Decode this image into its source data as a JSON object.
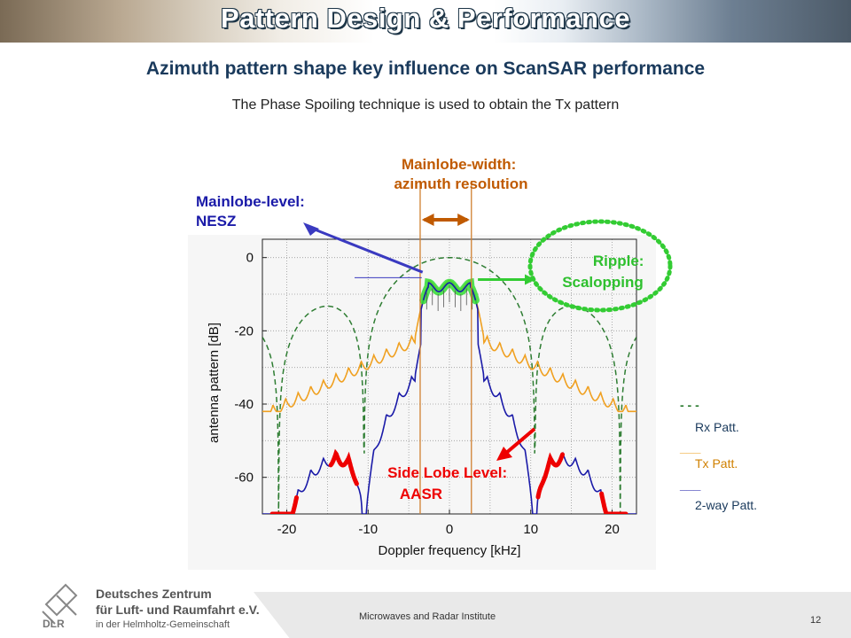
{
  "slide": {
    "banner_title": "Pattern Design & Performance",
    "subtitle": "Azimuth pattern shape key influence on ScanSAR performance",
    "caption": "The Phase Spoiling technique is used to obtain the Tx pattern",
    "footer": {
      "org_line1": "Deutsches Zentrum",
      "org_line2": "für Luft- und Raumfahrt e.V.",
      "org_line3": "in der Helmholtz-Gemeinschaft",
      "logo_text": "DLR",
      "institute": "Microwaves and Radar Institute",
      "page_number": "12"
    }
  },
  "chart_data": {
    "type": "line",
    "xlabel": "Doppler frequency [kHz]",
    "ylabel": "antenna pattern [dB]",
    "xlim": [
      -23,
      23
    ],
    "ylim": [
      -70,
      5
    ],
    "xticks": [
      -20,
      -10,
      0,
      10,
      20
    ],
    "yticks": [
      0,
      -20,
      -40,
      -60
    ],
    "grid": true,
    "series": [
      {
        "name": "Rx Patt.",
        "style": "dashed",
        "color": "#2e7d32"
      },
      {
        "name": "Tx Patt.",
        "style": "solid",
        "color": "#f0a020"
      },
      {
        "name": "2-way Patt.",
        "style": "solid",
        "color": "#1a1aa8"
      }
    ],
    "legend_marks": [
      "- - -",
      "___",
      "___"
    ],
    "annotations": {
      "mainlobe_width": "Mainlobe-width: azimuth resolution",
      "mainlobe_level": "Mainlobe-level: NESZ",
      "ripple": "Ripple: Scalopping",
      "sidelobe": "Side Lobe Level: AASR"
    },
    "colors": {
      "annotation_orange": "#c05a00",
      "annotation_blue": "#1a1aa8",
      "annotation_green": "#2ec02e",
      "annotation_red": "#ee0000"
    }
  }
}
